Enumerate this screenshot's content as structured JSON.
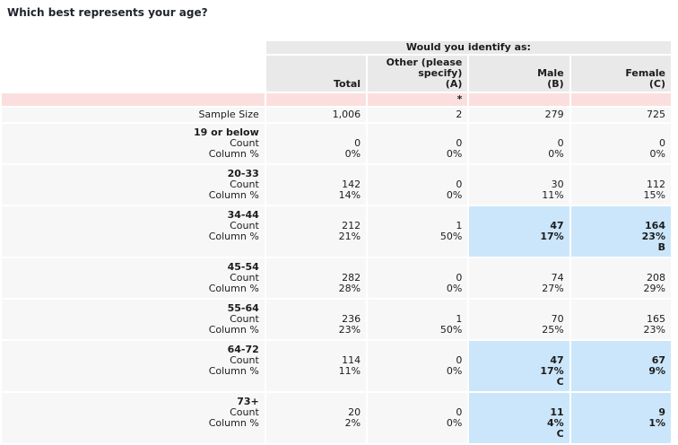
{
  "title": "Which best represents your age?",
  "colors": {
    "header_bg": "#e9e9e9",
    "row_bg": "#f7f7f7",
    "note_bg": "#fbdfdf",
    "highlight_bg": "#cbe6fa",
    "text": "#1c1c1c",
    "title_text": "#20242b"
  },
  "table": {
    "group_header": "Would you identify as:",
    "columns": [
      {
        "name": "Total",
        "lines": [
          "Total"
        ]
      },
      {
        "name": "Other (please specify) (A)",
        "lines": [
          "Other (please",
          "specify)",
          "(A)"
        ]
      },
      {
        "name": "Male (B)",
        "lines": [
          "Male",
          "(B)"
        ]
      },
      {
        "name": "Female (C)",
        "lines": [
          "Female",
          "(C)"
        ]
      }
    ],
    "note_row": {
      "marker": "*"
    },
    "sample_size": {
      "label": "Sample Size",
      "values": [
        "1,006",
        "2",
        "279",
        "725"
      ]
    },
    "row_labels": {
      "count": "Count",
      "column_pct": "Column %"
    },
    "rows": [
      {
        "label": "19 or below",
        "cells": [
          {
            "count": "0",
            "pct": "0%",
            "sig": "",
            "highlight": false
          },
          {
            "count": "0",
            "pct": "0%",
            "sig": "",
            "highlight": false
          },
          {
            "count": "0",
            "pct": "0%",
            "sig": "",
            "highlight": false
          },
          {
            "count": "0",
            "pct": "0%",
            "sig": "",
            "highlight": false
          }
        ]
      },
      {
        "label": "20-33",
        "cells": [
          {
            "count": "142",
            "pct": "14%",
            "sig": "",
            "highlight": false
          },
          {
            "count": "0",
            "pct": "0%",
            "sig": "",
            "highlight": false
          },
          {
            "count": "30",
            "pct": "11%",
            "sig": "",
            "highlight": false
          },
          {
            "count": "112",
            "pct": "15%",
            "sig": "",
            "highlight": false
          }
        ]
      },
      {
        "label": "34-44",
        "cells": [
          {
            "count": "212",
            "pct": "21%",
            "sig": "",
            "highlight": false
          },
          {
            "count": "1",
            "pct": "50%",
            "sig": "",
            "highlight": false
          },
          {
            "count": "47",
            "pct": "17%",
            "sig": "",
            "highlight": true
          },
          {
            "count": "164",
            "pct": "23%",
            "sig": "B",
            "highlight": true
          }
        ]
      },
      {
        "label": "45-54",
        "cells": [
          {
            "count": "282",
            "pct": "28%",
            "sig": "",
            "highlight": false
          },
          {
            "count": "0",
            "pct": "0%",
            "sig": "",
            "highlight": false
          },
          {
            "count": "74",
            "pct": "27%",
            "sig": "",
            "highlight": false
          },
          {
            "count": "208",
            "pct": "29%",
            "sig": "",
            "highlight": false
          }
        ]
      },
      {
        "label": "55-64",
        "cells": [
          {
            "count": "236",
            "pct": "23%",
            "sig": "",
            "highlight": false
          },
          {
            "count": "1",
            "pct": "50%",
            "sig": "",
            "highlight": false
          },
          {
            "count": "70",
            "pct": "25%",
            "sig": "",
            "highlight": false
          },
          {
            "count": "165",
            "pct": "23%",
            "sig": "",
            "highlight": false
          }
        ]
      },
      {
        "label": "64-72",
        "cells": [
          {
            "count": "114",
            "pct": "11%",
            "sig": "",
            "highlight": false
          },
          {
            "count": "0",
            "pct": "0%",
            "sig": "",
            "highlight": false
          },
          {
            "count": "47",
            "pct": "17%",
            "sig": "C",
            "highlight": true
          },
          {
            "count": "67",
            "pct": "9%",
            "sig": "",
            "highlight": true
          }
        ]
      },
      {
        "label": "73+",
        "cells": [
          {
            "count": "20",
            "pct": "2%",
            "sig": "",
            "highlight": false
          },
          {
            "count": "0",
            "pct": "0%",
            "sig": "",
            "highlight": false
          },
          {
            "count": "11",
            "pct": "4%",
            "sig": "C",
            "highlight": true
          },
          {
            "count": "9",
            "pct": "1%",
            "sig": "",
            "highlight": true
          }
        ]
      }
    ]
  },
  "chart_data": {
    "type": "table",
    "title": "Which best represents your age?",
    "group_header": "Would you identify as:",
    "columns": [
      "Total",
      "Other (please specify) (A)",
      "Male (B)",
      "Female (C)"
    ],
    "sample_size": [
      1006,
      2,
      279,
      725
    ],
    "categories": [
      "19 or below",
      "20-33",
      "34-44",
      "45-54",
      "55-64",
      "64-72",
      "73+"
    ],
    "series": [
      {
        "name": "Total Count",
        "values": [
          0,
          142,
          212,
          282,
          236,
          114,
          20
        ]
      },
      {
        "name": "Total Column %",
        "values": [
          0,
          14,
          21,
          28,
          23,
          11,
          2
        ]
      },
      {
        "name": "Other (A) Count",
        "values": [
          0,
          0,
          1,
          0,
          1,
          0,
          0
        ]
      },
      {
        "name": "Other (A) Column %",
        "values": [
          0,
          0,
          50,
          0,
          50,
          0,
          0
        ]
      },
      {
        "name": "Male (B) Count",
        "values": [
          0,
          30,
          47,
          74,
          70,
          47,
          11
        ]
      },
      {
        "name": "Male (B) Column %",
        "values": [
          0,
          11,
          17,
          27,
          25,
          17,
          4
        ]
      },
      {
        "name": "Female (C) Count",
        "values": [
          0,
          112,
          164,
          208,
          165,
          67,
          9
        ]
      },
      {
        "name": "Female (C) Column %",
        "values": [
          0,
          15,
          23,
          29,
          23,
          9,
          1
        ]
      }
    ],
    "annotations": [
      "* marker under Other (please specify) (A) column",
      "Significance letter B on Female 34-44",
      "Significance letter C on Male 64-72 and Male 73+",
      "Highlighted cells: Male & Female 34-44, Male & Female 64-72, Male & Female 73+"
    ]
  }
}
